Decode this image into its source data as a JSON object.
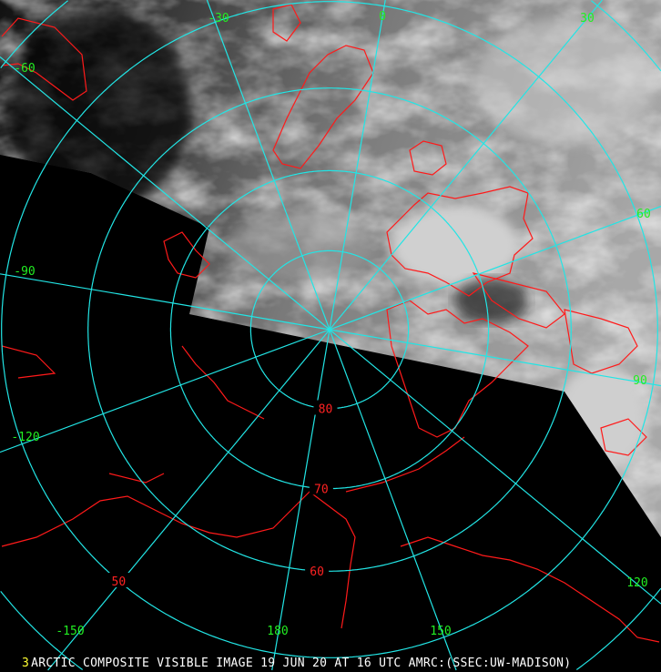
{
  "caption": {
    "frame_number": "3",
    "title": "ARCTIC COMPOSITE VISIBLE IMAGE 19 JUN 20 AT 16 UTC AMRC:(SSEC:UW-MADISON)"
  },
  "map": {
    "projection": "polar stereographic",
    "latitude_circles": [
      {
        "lat": 80,
        "label": "80"
      },
      {
        "lat": 70,
        "label": "70"
      },
      {
        "lat": 60,
        "label": "60"
      },
      {
        "lat": 50,
        "label": "50"
      },
      {
        "lat": 40,
        "label": ""
      }
    ],
    "longitude_labels": [
      "0",
      "30",
      "60",
      "90",
      "120",
      "150",
      "180",
      "-150",
      "-120",
      "-90",
      "-60",
      "-30"
    ],
    "meridian_spacing_deg": 30
  },
  "colors": {
    "grid": "#22e5e5",
    "coastline": "#ff1a1a",
    "longitude_label": "#22ee22",
    "latitude_label": "#ff2222",
    "caption_text": "#ffffff",
    "frame_number": "#ffff33",
    "background": "#000000"
  }
}
